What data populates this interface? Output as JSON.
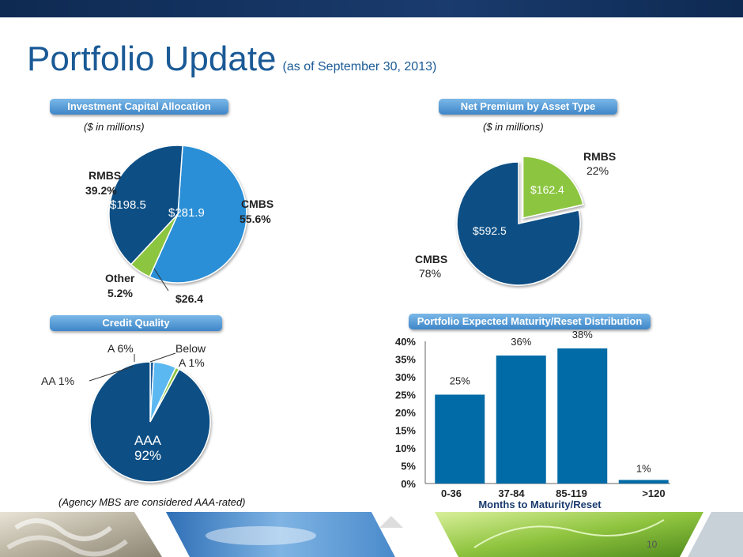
{
  "title": "Portfolio Update",
  "subtitle": "(as of September 30, 2013)",
  "page_number": "10",
  "colors": {
    "title": "#1a5a96",
    "dark_blue": "#0d4f85",
    "mid_blue": "#2a8fd6",
    "green": "#8cc63f",
    "light_blue": "#5bb8f0",
    "bar": "#006ba6"
  },
  "investment": {
    "header": "Investment Capital Allocation",
    "units": "($ in millions)",
    "labels": {
      "rmbs_name": "RMBS",
      "rmbs_pct": "39.2%",
      "cmbs_name": "CMBS",
      "cmbs_pct": "55.6%",
      "other_name": "Other",
      "other_pct": "5.2%",
      "other_value": "$26.4",
      "rmbs_value": "$198.5",
      "cmbs_value": "$281.9"
    }
  },
  "net_premium": {
    "header": "Net Premium by Asset Type",
    "units": "($ in millions)",
    "labels": {
      "rmbs_name": "RMBS",
      "rmbs_pct": "22%",
      "cmbs_name": "CMBS",
      "cmbs_pct": "78%",
      "rmbs_value": "$162.4",
      "cmbs_value": "$592.5"
    }
  },
  "credit": {
    "header": "Credit Quality",
    "footnote": "(Agency MBS are considered AAA-rated)",
    "labels": {
      "aaa_name": "AAA",
      "aaa_pct": "92%",
      "aa": "AA 1%",
      "a": "A 6%",
      "below_line1": "Below",
      "below_line2": "A 1%"
    }
  },
  "maturity": {
    "header": "Portfolio Expected Maturity/Reset Distribution"
  },
  "chart_data": [
    {
      "type": "pie",
      "categories": [
        "RMBS",
        "CMBS",
        "Other"
      ],
      "values": [
        198.5,
        281.9,
        26.4
      ],
      "percentages": [
        39.2,
        55.6,
        5.2
      ]
    },
    {
      "type": "pie",
      "categories": [
        "RMBS",
        "CMBS"
      ],
      "values": [
        162.4,
        592.5
      ],
      "percentages": [
        22,
        78
      ]
    },
    {
      "type": "pie",
      "categories": [
        "AAA",
        "AA",
        "A",
        "Below A"
      ],
      "values": [
        92,
        1,
        6,
        1
      ]
    },
    {
      "type": "bar",
      "categories": [
        "0-36",
        "37-84",
        "85-119",
        ">120"
      ],
      "values": [
        25,
        36,
        38,
        1
      ],
      "data_labels": [
        "25%",
        "36%",
        "38%",
        "1%"
      ],
      "xlabel": "Months to Maturity/Reset",
      "ylabel": "",
      "ylim": [
        0,
        40
      ],
      "yticks": [
        "0%",
        "5%",
        "10%",
        "15%",
        "20%",
        "25%",
        "30%",
        "35%",
        "40%"
      ],
      "grid": false
    }
  ]
}
